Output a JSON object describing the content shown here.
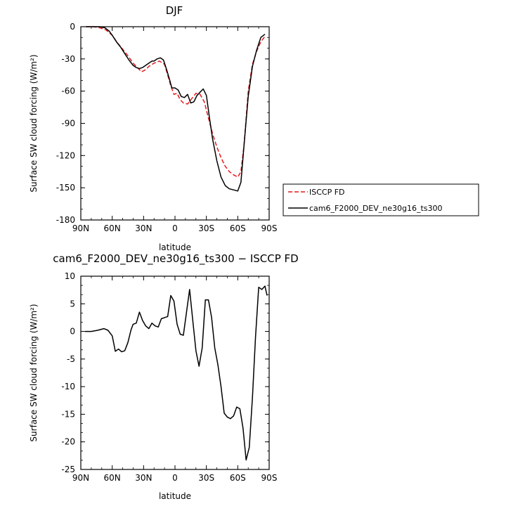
{
  "chart_data": [
    {
      "type": "line",
      "title": "DJF",
      "xlabel": "latitude",
      "ylabel": "Surface SW cloud forcing (W/m²)",
      "xlim": [
        90,
        -90
      ],
      "ylim": [
        -180,
        0
      ],
      "x_ticks": [
        90,
        60,
        30,
        0,
        -30,
        -60,
        -90
      ],
      "x_tick_labels": [
        "90N",
        "60N",
        "30N",
        "0",
        "30S",
        "60S",
        "90S"
      ],
      "y_ticks": [
        0,
        -30,
        -60,
        -90,
        -120,
        -150,
        -180
      ],
      "legend_position": "right",
      "series": [
        {
          "name": "ISCCP FD",
          "color": "#e4191c",
          "dash": "dashed",
          "x": [
            85,
            78,
            72,
            66,
            60,
            55,
            50,
            45,
            40,
            35,
            32,
            28,
            25,
            20,
            15,
            10,
            7,
            4,
            1,
            -2,
            -5,
            -8,
            -12,
            -16,
            -20,
            -24,
            -28,
            -32,
            -36,
            -40,
            -44,
            -48,
            -52,
            -56,
            -60,
            -63,
            -66,
            -70,
            -74,
            -78,
            -82,
            -86
          ],
          "values": [
            0,
            0,
            -1,
            -3,
            -8,
            -15,
            -21,
            -27,
            -34,
            -39,
            -42,
            -40,
            -37,
            -34,
            -32,
            -35,
            -45,
            -55,
            -63,
            -62,
            -68,
            -71,
            -72,
            -67,
            -62,
            -63,
            -70,
            -85,
            -100,
            -112,
            -122,
            -130,
            -135,
            -138,
            -140,
            -135,
            -110,
            -60,
            -35,
            -23,
            -14,
            -9
          ]
        },
        {
          "name": "cam6_F2000_DEV_ne30g16_ts300",
          "color": "#000000",
          "dash": "solid",
          "x": [
            85,
            78,
            72,
            67,
            63,
            60,
            56,
            52,
            48,
            44,
            40,
            37,
            34,
            31,
            28,
            25,
            22,
            20,
            17,
            14,
            11,
            8,
            5,
            3,
            0,
            -3,
            -6,
            -9,
            -12,
            -15,
            -18,
            -21,
            -24,
            -27,
            -30,
            -33,
            -36,
            -40,
            -44,
            -48,
            -52,
            -56,
            -60,
            -63,
            -66,
            -70,
            -74,
            -78,
            -82,
            -86
          ],
          "values": [
            0,
            0,
            0,
            -1,
            -4,
            -8,
            -14,
            -19,
            -25,
            -31,
            -36,
            -38,
            -39,
            -38,
            -36,
            -34,
            -32,
            -32,
            -30,
            -29,
            -31,
            -40,
            -50,
            -57,
            -57,
            -59,
            -65,
            -66,
            -63,
            -71,
            -70,
            -64,
            -61,
            -58,
            -64,
            -85,
            -105,
            -125,
            -140,
            -148,
            -151,
            -152,
            -153,
            -145,
            -110,
            -65,
            -37,
            -22,
            -10,
            -7
          ]
        }
      ]
    },
    {
      "type": "line",
      "title": "cam6_F2000_DEV_ne30g16_ts300 − ISCCP FD",
      "xlabel": "latitude",
      "ylabel": "Surface SW cloud forcing (W/m²)",
      "xlim": [
        90,
        -90
      ],
      "ylim": [
        -25,
        10
      ],
      "x_ticks": [
        90,
        60,
        30,
        0,
        -30,
        -60,
        -90
      ],
      "x_tick_labels": [
        "90N",
        "60N",
        "30N",
        "0",
        "30S",
        "60S",
        "90S"
      ],
      "y_ticks": [
        10,
        5,
        0,
        -5,
        -10,
        -15,
        -20,
        -25
      ],
      "series": [
        {
          "color": "#000000",
          "dash": "solid",
          "x": [
            86,
            80,
            74,
            68,
            64,
            60,
            57,
            54,
            51,
            48,
            45,
            42,
            40,
            37,
            34,
            31,
            28,
            25,
            22,
            19,
            16,
            13,
            10,
            7,
            4,
            1,
            -2,
            -5,
            -8,
            -11,
            -14,
            -17,
            -20,
            -23,
            -26,
            -29,
            -32,
            -35,
            -38,
            -41,
            -44,
            -47,
            -50,
            -53,
            -56,
            -59,
            -62,
            -65,
            -68,
            -71,
            -74,
            -77,
            -80,
            -83,
            -86,
            -88
          ],
          "values": [
            0,
            0,
            0.2,
            0.5,
            0.2,
            -0.8,
            -3.6,
            -3.2,
            -3.7,
            -3.5,
            -2.0,
            0.3,
            1.3,
            1.5,
            3.5,
            2.0,
            1.0,
            0.5,
            1.5,
            1.0,
            0.8,
            2.3,
            2.5,
            2.7,
            6.5,
            5.5,
            1.3,
            -0.5,
            -0.7,
            3.5,
            7.6,
            2.0,
            -3.5,
            -6.3,
            -3.0,
            5.7,
            5.7,
            2.5,
            -3.0,
            -6.0,
            -10.0,
            -14.8,
            -15.5,
            -15.8,
            -15.3,
            -13.7,
            -14.0,
            -17.5,
            -23.3,
            -21.0,
            -12.0,
            -1.0,
            8.0,
            7.6,
            8.2,
            6.5
          ]
        }
      ]
    }
  ]
}
